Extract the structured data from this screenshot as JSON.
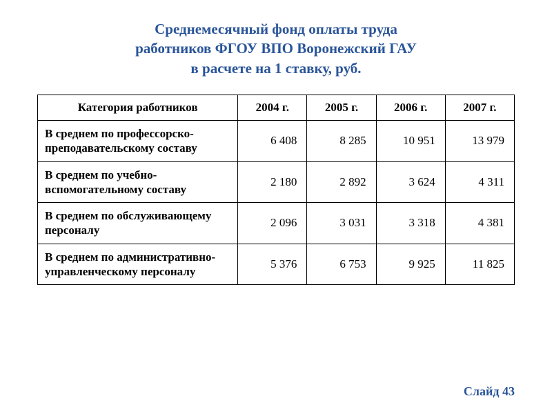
{
  "title": {
    "line1": "Среднемесячный фонд оплаты труда",
    "line2": "работников ФГОУ ВПО Воронежский  ГАУ",
    "line3": "в расчете на 1 ставку, руб."
  },
  "table": {
    "columns": [
      "Категория работников",
      "2004 г.",
      "2005 г.",
      "2006 г.",
      "2007 г."
    ],
    "col_widths_pct": [
      42,
      14.5,
      14.5,
      14.5,
      14.5
    ],
    "rows": [
      {
        "label": "В среднем по профессорско-преподавательскому составу",
        "values": [
          "6 408",
          "8 285",
          "10 951",
          "13 979"
        ]
      },
      {
        "label": "В среднем по учебно-вспомогательному составу",
        "values": [
          "2 180",
          "2 892",
          "3 624",
          "4 311"
        ]
      },
      {
        "label": "В среднем по обслуживающему персоналу",
        "values": [
          "2 096",
          "3 031",
          "3 318",
          "4 381"
        ]
      },
      {
        "label": "В среднем по административно-управленческому персоналу",
        "values": [
          "5 376",
          "6 753",
          "9 925",
          "11 825"
        ]
      }
    ],
    "border_color": "#000000",
    "header_font_weight": "bold",
    "label_font_weight": "bold",
    "cell_fontsize": 17
  },
  "colors": {
    "title": "#2a5599",
    "footer": "#2a5599",
    "background": "#ffffff"
  },
  "footer": "Слайд 43"
}
